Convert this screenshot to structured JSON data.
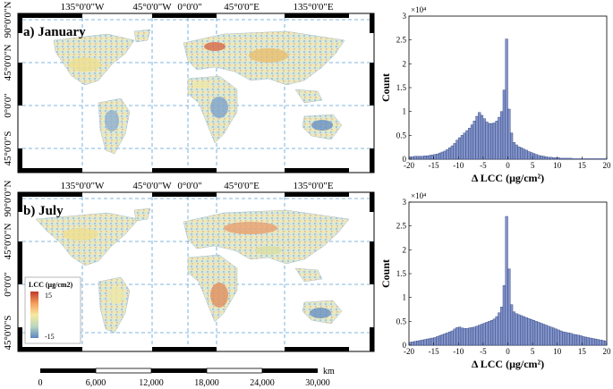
{
  "maps": [
    {
      "panel_label": "a) January",
      "top_labels": [
        "135°0'0\"W",
        "45°0'0\"W",
        "0°0'0\"",
        "45°0'0\"E",
        "135°0'0\"E"
      ],
      "side_labels": [
        "90°0'0\"N",
        "45°0'0\"N",
        "0°0'0\"",
        "45°0'0\"S"
      ]
    },
    {
      "panel_label": "b) July",
      "top_labels": [
        "135°0'0\"W",
        "45°0'0\"W",
        "0°0'0\"",
        "45°0'0\"E",
        "135°0'0\"E"
      ],
      "side_labels": [
        "90°0'0\"N",
        "45°0'0\"N",
        "0°0'0\"",
        "45°0'0\"S"
      ]
    }
  ],
  "legend": {
    "title": "LCC (μg/cm2)",
    "max_label": "15",
    "min_label": "-15",
    "colors": [
      "#c0392b",
      "#f39c5a",
      "#f7e9a0",
      "#b9d7c0",
      "#5a86c0"
    ]
  },
  "scalebar": {
    "unit": "km",
    "ticks": [
      "0",
      "6,000",
      "12,000",
      "18,000",
      "24,000",
      "30,000"
    ]
  },
  "chart_data": [
    {
      "type": "bar",
      "title": "",
      "xlabel": "Δ LCC (μg/cm²)",
      "ylabel": "Count",
      "multiplier": "×10⁴",
      "xlim": [
        -20,
        20
      ],
      "ylim": [
        0,
        3
      ],
      "x_ticks": [
        "-20",
        "-15",
        "-10",
        "-5",
        "0",
        "5",
        "10",
        "15",
        "20"
      ],
      "y_ticks": [
        "0",
        "0.5",
        "1",
        "1.5",
        "2",
        "2.5",
        "3"
      ],
      "x": [
        -19.75,
        -19.25,
        -18.75,
        -18.25,
        -17.75,
        -17.25,
        -16.75,
        -16.25,
        -15.75,
        -15.25,
        -14.75,
        -14.25,
        -13.75,
        -13.25,
        -12.75,
        -12.25,
        -11.75,
        -11.25,
        -10.75,
        -10.25,
        -9.75,
        -9.25,
        -8.75,
        -8.25,
        -7.75,
        -7.25,
        -6.75,
        -6.25,
        -5.75,
        -5.25,
        -4.75,
        -4.25,
        -3.75,
        -3.25,
        -2.75,
        -2.25,
        -1.75,
        -1.25,
        -0.75,
        -0.25,
        0.25,
        0.75,
        1.25,
        1.75,
        2.25,
        2.75,
        3.25,
        3.75,
        4.25,
        4.75,
        5.25,
        5.75,
        6.25,
        6.75,
        7.25,
        7.75,
        8.25,
        8.75,
        9.25,
        9.75,
        10.25,
        10.75,
        11.25,
        11.75,
        12.25,
        12.75,
        13.25,
        13.75,
        14.25,
        14.75,
        15.25,
        15.75,
        16.25,
        16.75,
        17.25,
        17.75,
        18.25,
        18.75,
        19.25,
        19.75
      ],
      "values": [
        0.05,
        0.05,
        0.06,
        0.06,
        0.06,
        0.06,
        0.07,
        0.07,
        0.08,
        0.09,
        0.1,
        0.11,
        0.13,
        0.15,
        0.17,
        0.2,
        0.24,
        0.28,
        0.33,
        0.4,
        0.45,
        0.5,
        0.55,
        0.6,
        0.65,
        0.72,
        0.8,
        0.9,
        0.98,
        0.92,
        0.85,
        0.78,
        0.75,
        0.75,
        0.76,
        0.8,
        0.88,
        1.0,
        1.45,
        2.52,
        1.05,
        0.55,
        0.35,
        0.3,
        0.26,
        0.24,
        0.21,
        0.19,
        0.16,
        0.14,
        0.12,
        0.1,
        0.08,
        0.07,
        0.06,
        0.05,
        0.04,
        0.04,
        0.03,
        0.03,
        0.03,
        0.02,
        0.02,
        0.02,
        0.02,
        0.02,
        0.01,
        0.01,
        0.01,
        0.01,
        0.01,
        0.01,
        0.01,
        0.01,
        0.01,
        0.01,
        0.01,
        0.01,
        0.01,
        0.01
      ]
    },
    {
      "type": "bar",
      "title": "",
      "xlabel": "Δ LCC (μg/cm²)",
      "ylabel": "Count",
      "multiplier": "×10⁴",
      "xlim": [
        -20,
        20
      ],
      "ylim": [
        0,
        3
      ],
      "x_ticks": [
        "-20",
        "-15",
        "-10",
        "-5",
        "0",
        "5",
        "10",
        "15",
        "20"
      ],
      "y_ticks": [
        "0",
        "0.5",
        "1",
        "1.5",
        "2",
        "2.5",
        "3"
      ],
      "x": [
        -19.75,
        -19.25,
        -18.75,
        -18.25,
        -17.75,
        -17.25,
        -16.75,
        -16.25,
        -15.75,
        -15.25,
        -14.75,
        -14.25,
        -13.75,
        -13.25,
        -12.75,
        -12.25,
        -11.75,
        -11.25,
        -10.75,
        -10.25,
        -9.75,
        -9.25,
        -8.75,
        -8.25,
        -7.75,
        -7.25,
        -6.75,
        -6.25,
        -5.75,
        -5.25,
        -4.75,
        -4.25,
        -3.75,
        -3.25,
        -2.75,
        -2.25,
        -1.75,
        -1.25,
        -0.75,
        -0.25,
        0.25,
        0.75,
        1.25,
        1.75,
        2.25,
        2.75,
        3.25,
        3.75,
        4.25,
        4.75,
        5.25,
        5.75,
        6.25,
        6.75,
        7.25,
        7.75,
        8.25,
        8.75,
        9.25,
        9.75,
        10.25,
        10.75,
        11.25,
        11.75,
        12.25,
        12.75,
        13.25,
        13.75,
        14.25,
        14.75,
        15.25,
        15.75,
        16.25,
        16.75,
        17.25,
        17.75,
        18.25,
        18.75,
        19.25,
        19.75
      ],
      "values": [
        0.06,
        0.07,
        0.08,
        0.09,
        0.1,
        0.11,
        0.12,
        0.13,
        0.14,
        0.15,
        0.16,
        0.18,
        0.2,
        0.22,
        0.24,
        0.26,
        0.28,
        0.3,
        0.34,
        0.37,
        0.38,
        0.36,
        0.35,
        0.35,
        0.36,
        0.37,
        0.38,
        0.4,
        0.42,
        0.44,
        0.46,
        0.48,
        0.5,
        0.52,
        0.55,
        0.6,
        0.68,
        0.8,
        1.25,
        2.7,
        1.6,
        0.85,
        0.7,
        0.66,
        0.64,
        0.62,
        0.6,
        0.58,
        0.56,
        0.54,
        0.52,
        0.5,
        0.48,
        0.46,
        0.44,
        0.42,
        0.4,
        0.38,
        0.36,
        0.34,
        0.32,
        0.3,
        0.28,
        0.27,
        0.26,
        0.25,
        0.23,
        0.22,
        0.21,
        0.2,
        0.18,
        0.17,
        0.16,
        0.15,
        0.14,
        0.13,
        0.12,
        0.11,
        0.1,
        0.09
      ]
    }
  ]
}
